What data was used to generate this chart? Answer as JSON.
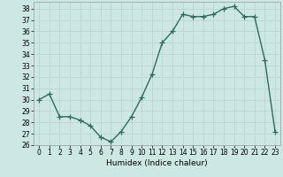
{
  "x": [
    0,
    1,
    2,
    3,
    4,
    5,
    6,
    7,
    8,
    9,
    10,
    11,
    12,
    13,
    14,
    15,
    16,
    17,
    18,
    19,
    20,
    21,
    22,
    23
  ],
  "y": [
    30,
    30.5,
    28.5,
    28.5,
    28.2,
    27.7,
    26.7,
    26.3,
    27.2,
    28.5,
    30.2,
    32.2,
    35.0,
    36.0,
    37.5,
    37.3,
    37.3,
    37.5,
    38.0,
    38.2,
    37.3,
    37.3,
    33.5,
    27.2
  ],
  "line_color": "#2e6b5e",
  "marker": "+",
  "markersize": 4,
  "linewidth": 1.0,
  "xlabel": "Humidex (Indice chaleur)",
  "xlim": [
    -0.5,
    23.5
  ],
  "ylim": [
    26,
    38.6
  ],
  "yticks": [
    26,
    27,
    28,
    29,
    30,
    31,
    32,
    33,
    34,
    35,
    36,
    37,
    38
  ],
  "xticks": [
    0,
    1,
    2,
    3,
    4,
    5,
    6,
    7,
    8,
    9,
    10,
    11,
    12,
    13,
    14,
    15,
    16,
    17,
    18,
    19,
    20,
    21,
    22,
    23
  ],
  "bg_color": "#cde8e4",
  "grid_color": "#b8d8d4",
  "label_fontsize": 6.5,
  "tick_fontsize": 5.5
}
